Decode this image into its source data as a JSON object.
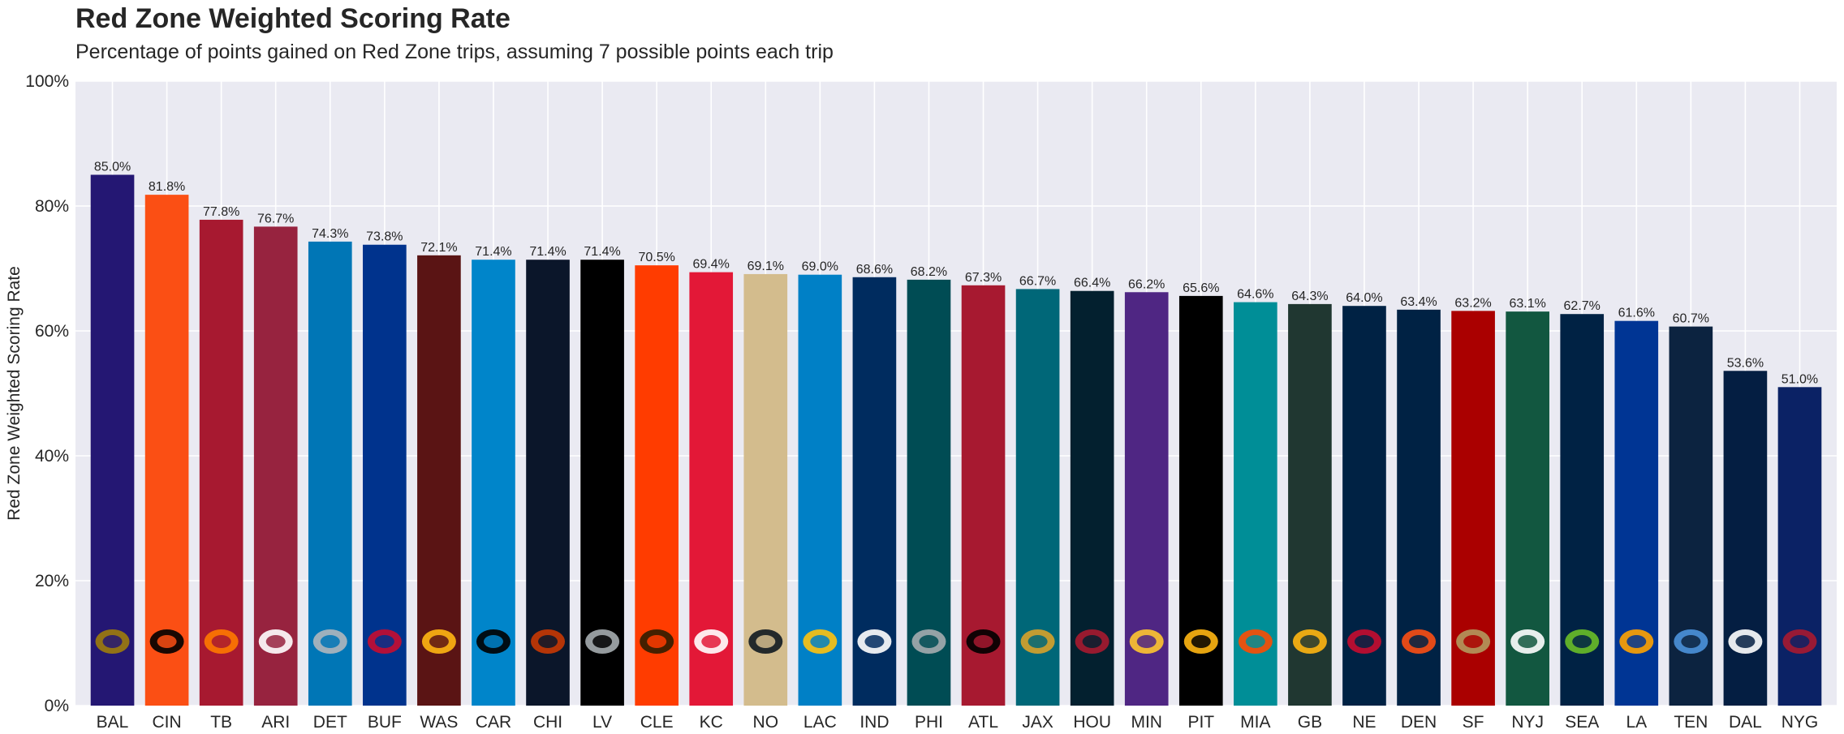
{
  "chart_data": {
    "type": "bar",
    "title": "Red Zone Weighted Scoring Rate",
    "subtitle": "Percentage of points gained on Red Zone trips, assuming 7 possible points each trip",
    "xlabel": "",
    "ylabel": "Red Zone Weighted Scoring Rate",
    "ylim": [
      0,
      100
    ],
    "yticks": [
      "0%",
      "20%",
      "40%",
      "60%",
      "80%",
      "100%"
    ],
    "grid": true,
    "categories": [
      "BAL",
      "CIN",
      "TB",
      "ARI",
      "DET",
      "BUF",
      "WAS",
      "CAR",
      "CHI",
      "LV",
      "CLE",
      "KC",
      "NO",
      "LAC",
      "IND",
      "PHI",
      "ATL",
      "JAX",
      "HOU",
      "MIN",
      "PIT",
      "MIA",
      "GB",
      "NE",
      "DEN",
      "SF",
      "NYJ",
      "SEA",
      "LA",
      "TEN",
      "DAL",
      "NYG"
    ],
    "values": [
      85.0,
      81.8,
      77.8,
      76.7,
      74.3,
      73.8,
      72.1,
      71.4,
      71.4,
      71.4,
      70.5,
      69.4,
      69.1,
      69.0,
      68.6,
      68.2,
      67.3,
      66.7,
      66.4,
      66.2,
      65.6,
      64.6,
      64.3,
      64.0,
      63.4,
      63.2,
      63.1,
      62.7,
      61.6,
      60.7,
      53.6,
      51.0
    ],
    "data_labels": [
      "85.0%",
      "81.8%",
      "77.8%",
      "76.7%",
      "74.3%",
      "73.8%",
      "72.1%",
      "71.4%",
      "71.4%",
      "71.4%",
      "70.5%",
      "69.4%",
      "69.1%",
      "69.0%",
      "68.6%",
      "68.2%",
      "67.3%",
      "66.7%",
      "66.4%",
      "66.2%",
      "65.6%",
      "64.6%",
      "64.3%",
      "64.0%",
      "63.4%",
      "63.2%",
      "63.1%",
      "62.7%",
      "61.6%",
      "60.7%",
      "53.6%",
      "51.0%"
    ],
    "colors": [
      "#241773",
      "#FB4F14",
      "#A71930",
      "#97233F",
      "#0076B6",
      "#00338D",
      "#5A1414",
      "#0085CA",
      "#0B162A",
      "#000000",
      "#FF3C00",
      "#E31837",
      "#D3BC8D",
      "#0080C6",
      "#002C5F",
      "#004C54",
      "#A71930",
      "#006778",
      "#03202F",
      "#4F2683",
      "#000000",
      "#008E97",
      "#203731",
      "#002244",
      "#002244",
      "#AA0000",
      "#125740",
      "#002244",
      "#003594",
      "#0C2340",
      "#041E42",
      "#0B2265"
    ],
    "logo_icons": [
      "ravens-logo-icon",
      "bengals-logo-icon",
      "buccaneers-logo-icon",
      "cardinals-logo-icon",
      "lions-logo-icon",
      "bills-logo-icon",
      "commanders-logo-icon",
      "panthers-logo-icon",
      "bears-logo-icon",
      "raiders-logo-icon",
      "browns-logo-icon",
      "chiefs-logo-icon",
      "saints-logo-icon",
      "chargers-logo-icon",
      "colts-logo-icon",
      "eagles-logo-icon",
      "falcons-logo-icon",
      "jaguars-logo-icon",
      "texans-logo-icon",
      "vikings-logo-icon",
      "steelers-logo-icon",
      "dolphins-logo-icon",
      "packers-logo-icon",
      "patriots-logo-icon",
      "broncos-logo-icon",
      "49ers-logo-icon",
      "jets-logo-icon",
      "seahawks-logo-icon",
      "rams-logo-icon",
      "titans-logo-icon",
      "cowboys-logo-icon",
      "giants-logo-icon"
    ],
    "logo_colors": [
      "#9E7C0C",
      "#000000",
      "#FF7900",
      "#FFFFFF",
      "#B0B7BC",
      "#C60C30",
      "#FFB612",
      "#000000",
      "#C83803",
      "#A5ACAF",
      "#311D00",
      "#FFFFFF",
      "#101820",
      "#FFC20E",
      "#FFFFFF",
      "#A5ACAF",
      "#000000",
      "#D7A22A",
      "#A71930",
      "#FFC62F",
      "#FFB612",
      "#FC4C02",
      "#FFB612",
      "#C60C30",
      "#FB4F14",
      "#B3995D",
      "#FFFFFF",
      "#69BE28",
      "#FFA300",
      "#4B92DB",
      "#FFFFFF",
      "#A71930"
    ]
  }
}
